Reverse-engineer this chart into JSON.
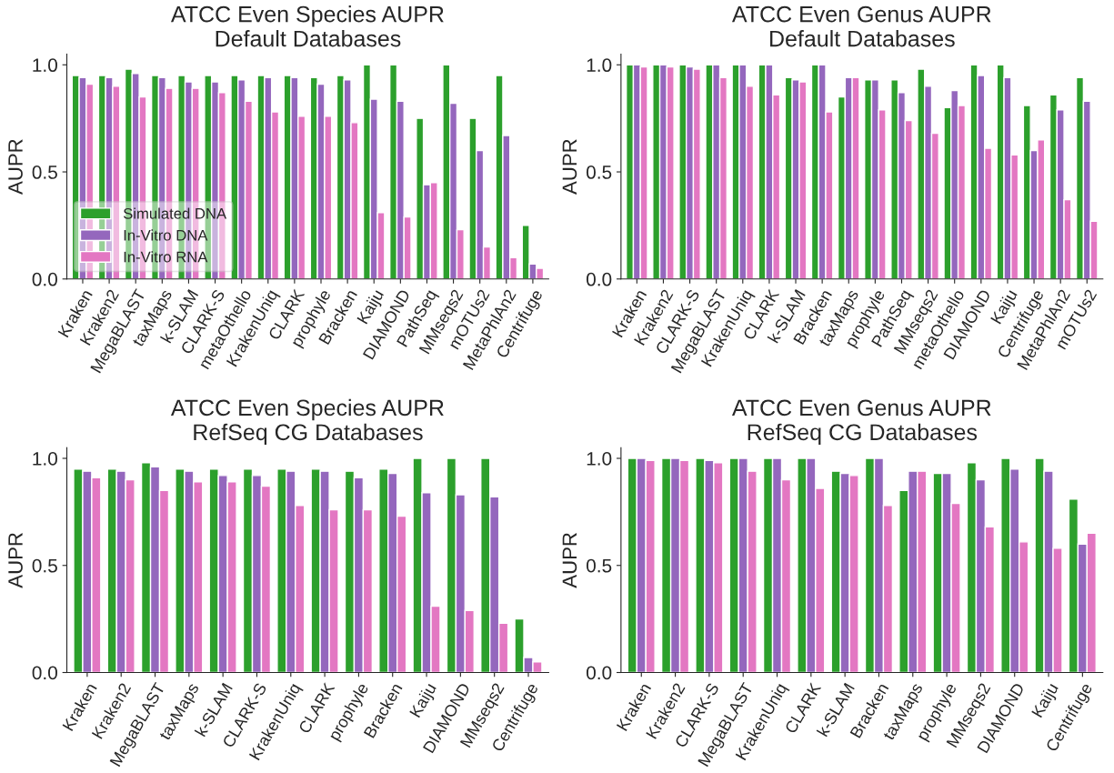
{
  "chart_data": [
    {
      "type": "bar",
      "title": "ATCC Even Species AUPR\nDefault Databases",
      "ylabel": "AUPR",
      "categories": [
        "Kraken",
        "Kraken2",
        "MegaBLAST",
        "taxMaps",
        "k-SLAM",
        "CLARK-S",
        "metaOthello",
        "KrakenUniq",
        "CLARK",
        "prophyle",
        "Bracken",
        "Kaiju",
        "DIAMOND",
        "PathSeq",
        "MMseqs2",
        "mOTUs2",
        "MetaPhlAn2",
        "Centrifuge"
      ],
      "series": [
        {
          "name": "Simulated DNA",
          "color": "#2ca02c",
          "values": [
            0.95,
            0.95,
            0.98,
            0.95,
            0.95,
            0.95,
            0.95,
            0.95,
            0.95,
            0.94,
            0.95,
            1.0,
            1.0,
            0.75,
            1.0,
            0.75,
            0.95,
            0.25
          ]
        },
        {
          "name": "In-Vitro DNA",
          "color": "#9467bd",
          "values": [
            0.94,
            0.94,
            0.96,
            0.94,
            0.92,
            0.92,
            0.93,
            0.94,
            0.94,
            0.91,
            0.93,
            0.84,
            0.83,
            0.44,
            0.82,
            0.6,
            0.67,
            0.07
          ]
        },
        {
          "name": "In-Vitro RNA",
          "color": "#e377c2",
          "values": [
            0.91,
            0.9,
            0.85,
            0.89,
            0.89,
            0.87,
            0.83,
            0.78,
            0.76,
            0.76,
            0.73,
            0.31,
            0.29,
            0.45,
            0.23,
            0.15,
            0.1,
            0.05
          ]
        }
      ],
      "ylim": [
        0,
        1.05
      ],
      "yticks": [
        {
          "value": 0,
          "label": "0.0"
        },
        {
          "value": 0.5,
          "label": "0.5"
        },
        {
          "value": 1,
          "label": "1.0"
        }
      ],
      "legend": "lower left"
    },
    {
      "type": "bar",
      "title": "ATCC Even Genus AUPR\nDefault Databases",
      "ylabel": "AUPR",
      "categories": [
        "Kraken",
        "Kraken2",
        "CLARK-S",
        "MegaBLAST",
        "KrakenUniq",
        "CLARK",
        "k-SLAM",
        "Bracken",
        "taxMaps",
        "prophyle",
        "PathSeq",
        "MMseqs2",
        "metaOthello",
        "DIAMOND",
        "Kaiju",
        "Centrifuge",
        "MetaPhlAn2",
        "mOTUs2"
      ],
      "series": [
        {
          "color": "#2ca02c",
          "values": [
            1.0,
            1.0,
            1.0,
            1.0,
            1.0,
            1.0,
            0.94,
            1.0,
            0.85,
            0.93,
            0.93,
            0.98,
            0.8,
            1.0,
            1.0,
            0.81,
            0.86,
            0.94
          ]
        },
        {
          "color": "#9467bd",
          "values": [
            1.0,
            1.0,
            0.99,
            1.0,
            1.0,
            1.0,
            0.93,
            1.0,
            0.94,
            0.93,
            0.87,
            0.9,
            0.88,
            0.95,
            0.94,
            0.6,
            0.79,
            0.83
          ]
        },
        {
          "color": "#e377c2",
          "values": [
            0.99,
            0.99,
            0.98,
            0.94,
            0.9,
            0.86,
            0.92,
            0.78,
            0.94,
            0.79,
            0.74,
            0.68,
            0.81,
            0.61,
            0.58,
            0.65,
            0.37,
            0.27
          ]
        }
      ],
      "ylim": [
        0,
        1.05
      ],
      "yticks": [
        {
          "value": 0,
          "label": "0.0"
        },
        {
          "value": 0.5,
          "label": "0.5"
        },
        {
          "value": 1,
          "label": "1.0"
        }
      ]
    },
    {
      "type": "bar",
      "title": "ATCC Even Species AUPR\nRefSeq CG Databases",
      "ylabel": "AUPR",
      "categories": [
        "Kraken",
        "Kraken2",
        "MegaBLAST",
        "taxMaps",
        "k-SLAM",
        "CLARK-S",
        "KrakenUniq",
        "CLARK",
        "prophyle",
        "Bracken",
        "Kaiju",
        "DIAMOND",
        "MMseqs2",
        "Centrifuge"
      ],
      "series": [
        {
          "color": "#2ca02c",
          "values": [
            0.95,
            0.95,
            0.98,
            0.95,
            0.95,
            0.95,
            0.95,
            0.95,
            0.94,
            0.95,
            1.0,
            1.0,
            1.0,
            0.25
          ]
        },
        {
          "color": "#9467bd",
          "values": [
            0.94,
            0.94,
            0.96,
            0.94,
            0.92,
            0.92,
            0.94,
            0.94,
            0.91,
            0.93,
            0.84,
            0.83,
            0.82,
            0.07
          ]
        },
        {
          "color": "#e377c2",
          "values": [
            0.91,
            0.9,
            0.85,
            0.89,
            0.89,
            0.87,
            0.78,
            0.76,
            0.76,
            0.73,
            0.31,
            0.29,
            0.23,
            0.05
          ]
        }
      ],
      "ylim": [
        0,
        1.05
      ],
      "yticks": [
        {
          "value": 0,
          "label": "0.0"
        },
        {
          "value": 0.5,
          "label": "0.5"
        },
        {
          "value": 1,
          "label": "1.0"
        }
      ]
    },
    {
      "type": "bar",
      "title": "ATCC Even Genus AUPR\nRefSeq CG Databases",
      "ylabel": "AUPR",
      "categories": [
        "Kraken",
        "Kraken2",
        "CLARK-S",
        "MegaBLAST",
        "KrakenUniq",
        "CLARK",
        "k-SLAM",
        "Bracken",
        "taxMaps",
        "prophyle",
        "MMseqs2",
        "DIAMOND",
        "Kaiju",
        "Centrifuge"
      ],
      "series": [
        {
          "color": "#2ca02c",
          "values": [
            1.0,
            1.0,
            1.0,
            1.0,
            1.0,
            1.0,
            0.94,
            1.0,
            0.85,
            0.93,
            0.98,
            1.0,
            1.0,
            0.81
          ]
        },
        {
          "color": "#9467bd",
          "values": [
            1.0,
            1.0,
            0.99,
            1.0,
            1.0,
            1.0,
            0.93,
            1.0,
            0.94,
            0.93,
            0.9,
            0.95,
            0.94,
            0.6
          ]
        },
        {
          "color": "#e377c2",
          "values": [
            0.99,
            0.99,
            0.98,
            0.94,
            0.9,
            0.86,
            0.92,
            0.78,
            0.94,
            0.79,
            0.68,
            0.61,
            0.58,
            0.65
          ]
        }
      ],
      "ylim": [
        0,
        1.05
      ],
      "yticks": [
        {
          "value": 0,
          "label": "0.0"
        },
        {
          "value": 0.5,
          "label": "0.5"
        },
        {
          "value": 1,
          "label": "1.0"
        }
      ]
    }
  ]
}
